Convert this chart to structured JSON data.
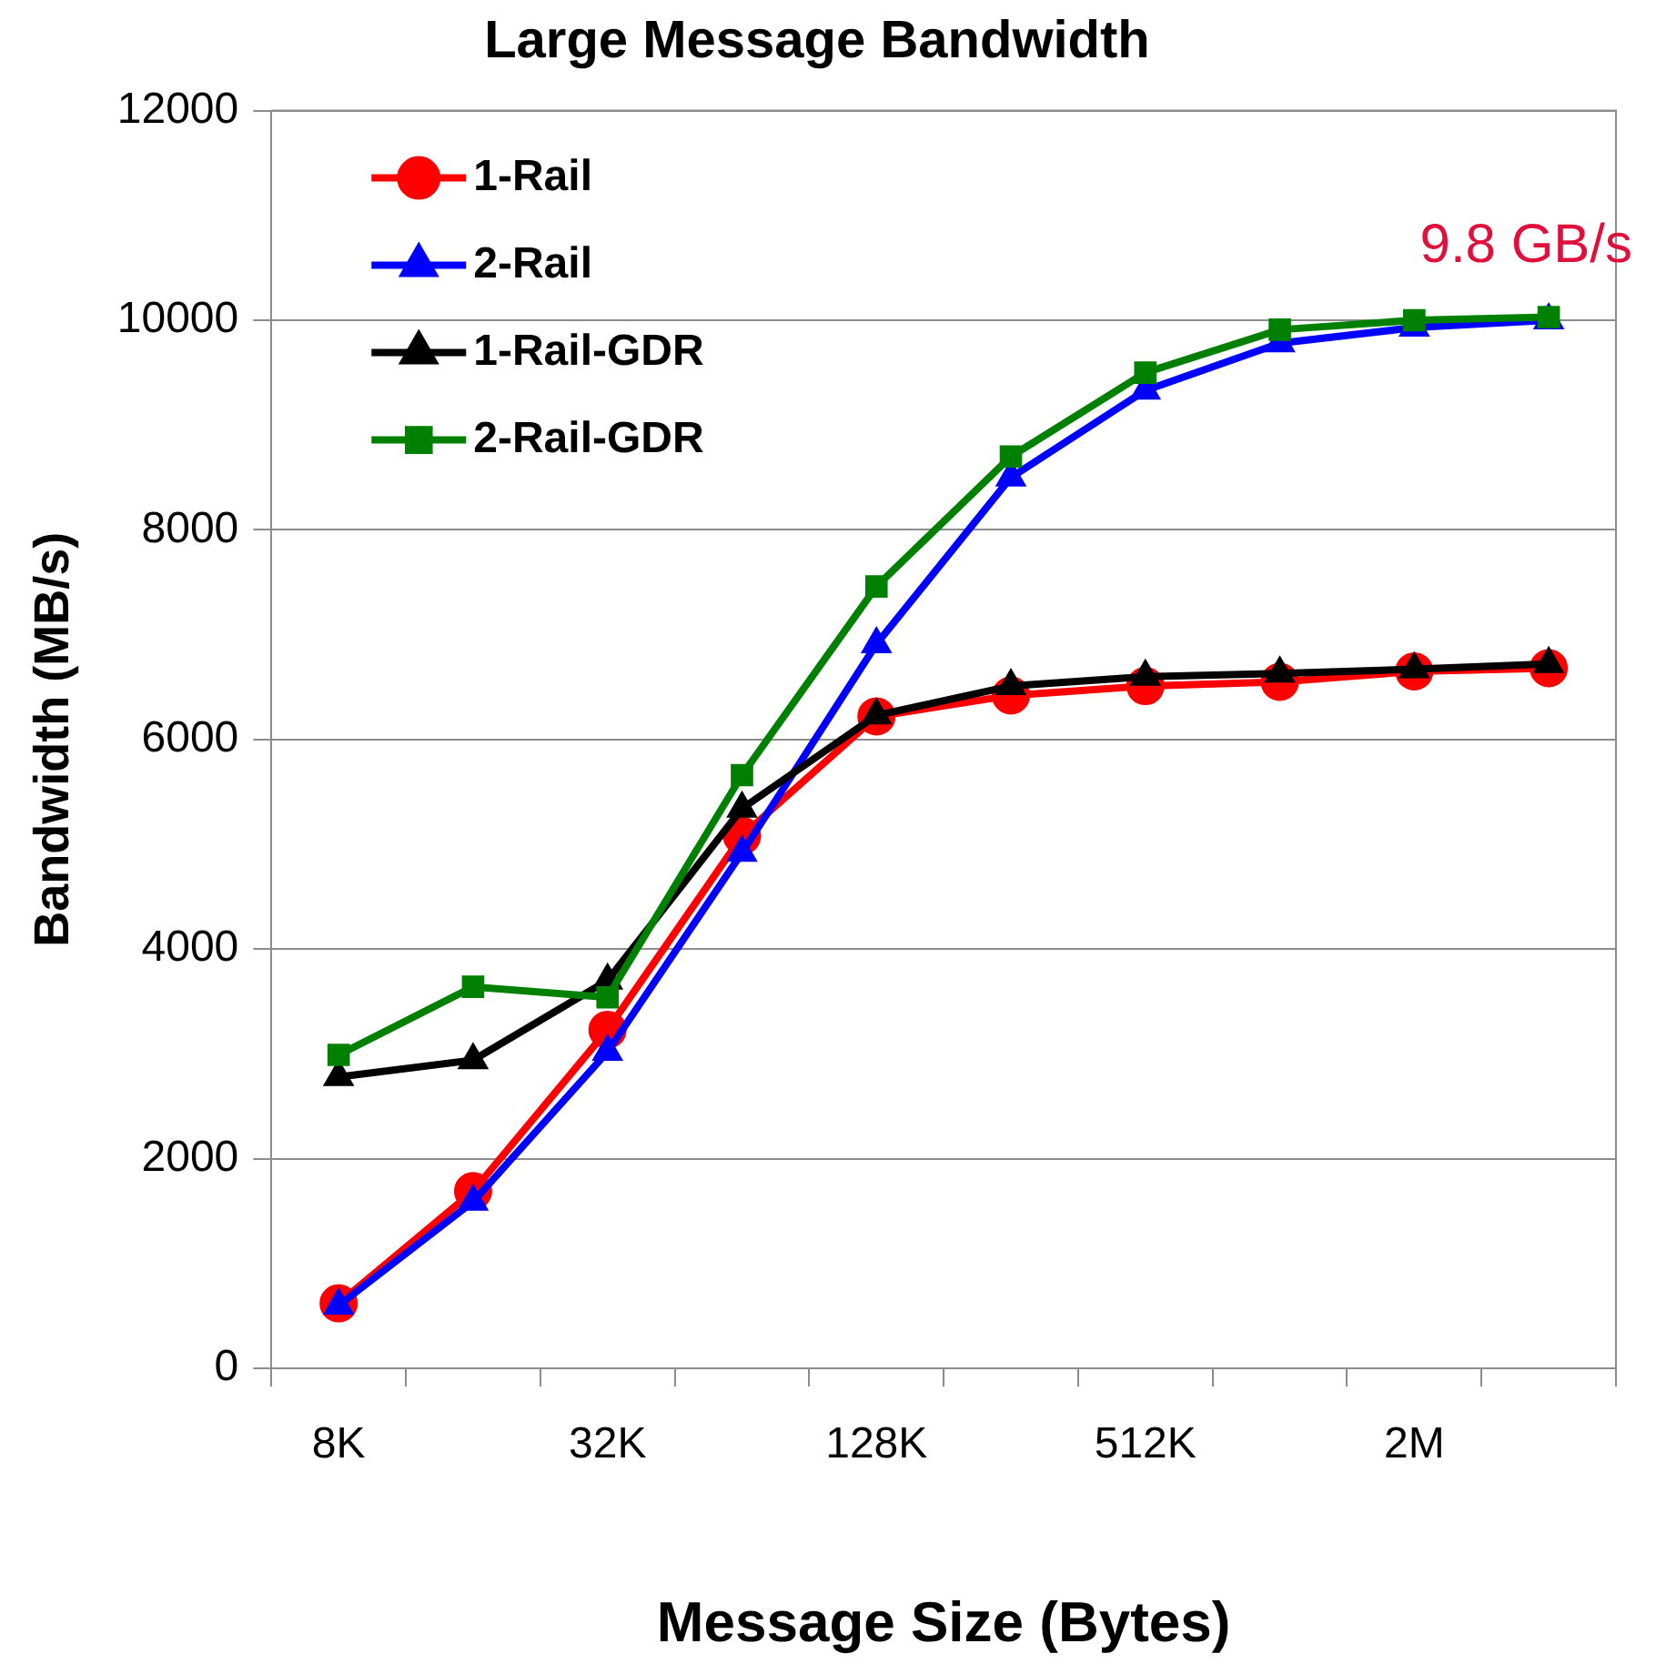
{
  "chart_data": {
    "type": "line",
    "title": "Large Message Bandwidth",
    "xlabel": "Message Size (Bytes)",
    "ylabel": "Bandwidth (MB/s)",
    "categories": [
      "8K",
      null,
      "32K",
      null,
      "128K",
      null,
      "512K",
      null,
      "2M",
      null
    ],
    "series": [
      {
        "name": "1-Rail",
        "color": "#ff0000",
        "marker": "circle",
        "values": [
          620,
          1690,
          3230,
          5080,
          6220,
          6420,
          6510,
          6550,
          6650,
          6680
        ]
      },
      {
        "name": "2-Rail",
        "color": "#0000ff",
        "marker": "triangle",
        "values": [
          600,
          1590,
          3020,
          4920,
          6910,
          8500,
          9330,
          9780,
          9930,
          10000
        ]
      },
      {
        "name": "1-Rail-GDR",
        "color": "#000000",
        "marker": "triangle",
        "values": [
          2780,
          2940,
          3700,
          5340,
          6230,
          6510,
          6600,
          6630,
          6670,
          6720
        ]
      },
      {
        "name": "2-Rail-GDR",
        "color": "#008000",
        "marker": "square",
        "values": [
          2990,
          3640,
          3540,
          5660,
          7460,
          8700,
          9500,
          9910,
          10000,
          10030
        ]
      }
    ],
    "ylim": [
      0,
      12000
    ],
    "yticks": [
      0,
      2000,
      4000,
      6000,
      8000,
      10000,
      12000
    ],
    "grid": "y",
    "legend": "top left",
    "line_style": "solid",
    "annotations": [
      "9.8 GB/s"
    ]
  }
}
